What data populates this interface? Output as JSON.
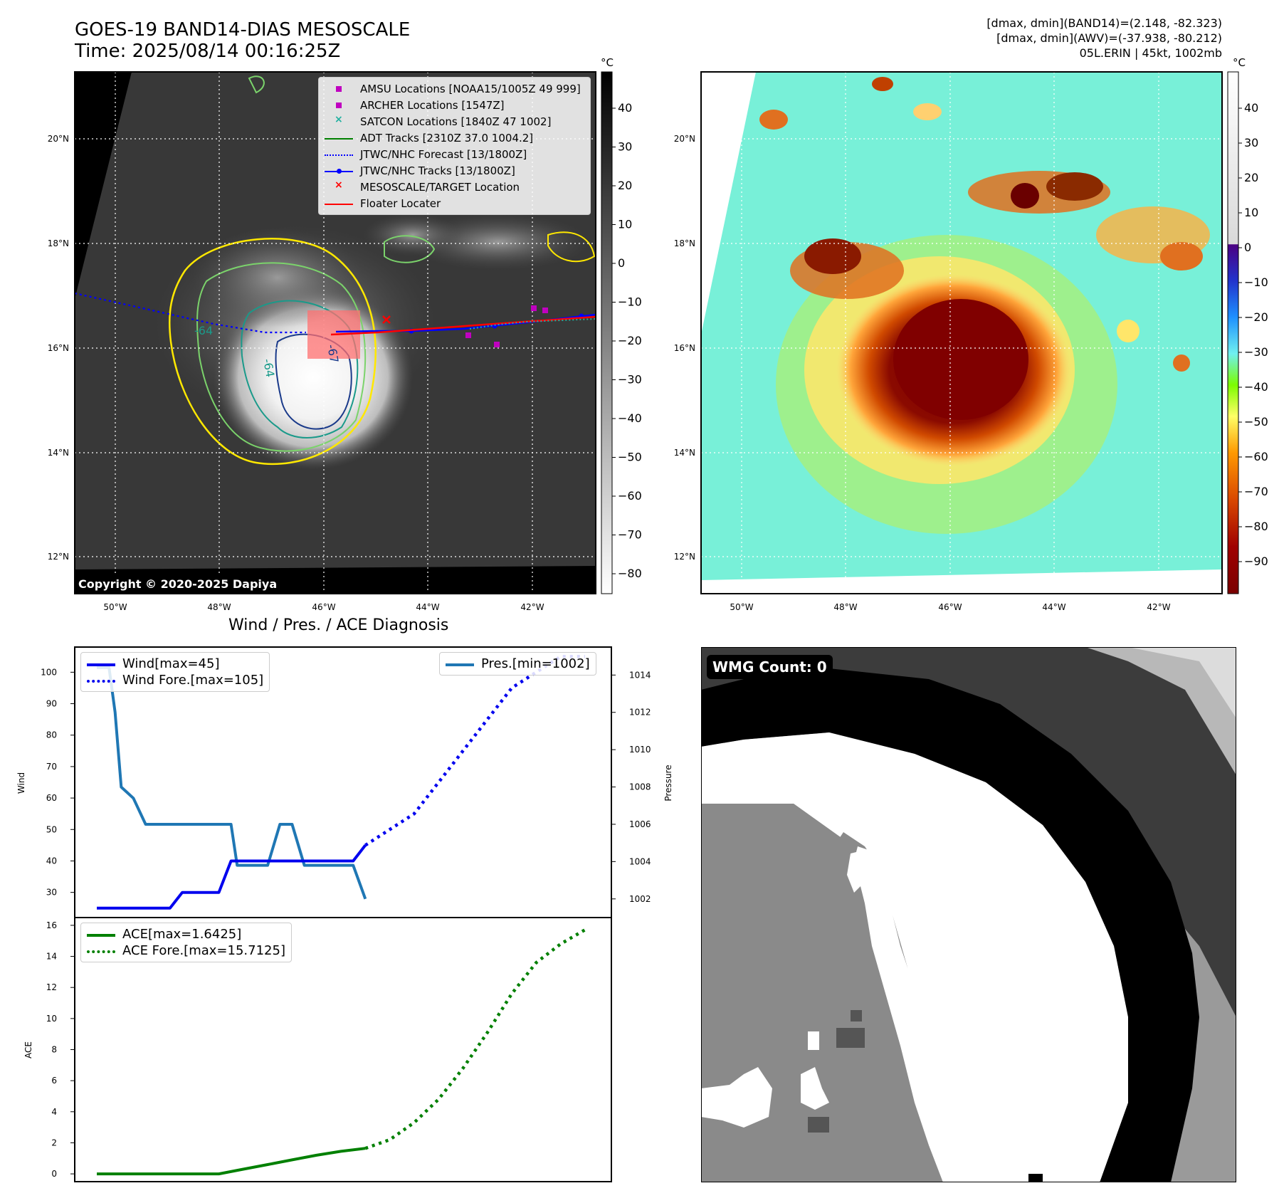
{
  "header": {
    "title_line1": "GOES-19 BAND14-DIAS MESOSCALE",
    "title_line2": "Time: 2025/08/14 00:16:25Z",
    "info_line1": "[dmax, dmin](BAND14)=(2.148, -82.323)",
    "info_line2": "[dmax, dmin](AWV)=(-37.938, -80.212)",
    "info_line3": "05L.ERIN | 45kt, 1002mb"
  },
  "map": {
    "lat_labels": [
      "20°N",
      "18°N",
      "16°N",
      "14°N",
      "12°N"
    ],
    "lon_labels": [
      "50°W",
      "48°W",
      "46°W",
      "44°W",
      "42°W"
    ],
    "copyright": "Copyright © 2020-2025 Dapiya",
    "contour_labels": [
      "-64",
      "-64",
      "-67"
    ],
    "legend": [
      {
        "label": "AMSU Locations [NOAA15/1005Z 49 999]",
        "color": "#c000c0",
        "marker": "square"
      },
      {
        "label": "ARCHER Locations [1547Z]",
        "color": "#c000c0",
        "marker": "square"
      },
      {
        "label": "SATCON Locations [1840Z 47 1002]",
        "color": "#20b0a0",
        "marker": "x"
      },
      {
        "label": "ADT Tracks [2310Z 37.0 1004.2]",
        "color": "#008000",
        "marker": "line"
      },
      {
        "label": "JTWC/NHC Forecast [13/1800Z]",
        "color": "#0000ff",
        "marker": "dotted"
      },
      {
        "label": "JTWC/NHC Tracks [13/1800Z]",
        "color": "#0000ff",
        "marker": "line-dot"
      },
      {
        "label": "MESOSCALE/TARGET Location",
        "color": "#ff0000",
        "marker": "x"
      },
      {
        "label": "Floater Locater",
        "color": "#ff0000",
        "marker": "line"
      }
    ]
  },
  "colorbar_gray": {
    "unit": "°C",
    "ticks": [
      "40",
      "30",
      "20",
      "10",
      "0",
      "−10",
      "−20",
      "−30",
      "−40",
      "−50",
      "−60",
      "−70",
      "−80"
    ]
  },
  "colorbar_color": {
    "unit": "°C",
    "ticks": [
      "40",
      "30",
      "20",
      "10",
      "0",
      "−10",
      "−20",
      "−30",
      "−40",
      "−50",
      "−60",
      "−70",
      "−80",
      "−90"
    ]
  },
  "diagnosis": {
    "title": "Wind / Pres. / ACE Diagnosis",
    "wind_ylabel": "Wind",
    "pres_ylabel": "Pressure",
    "ace_ylabel": "ACE",
    "wind_ticks": [
      "100",
      "90",
      "80",
      "70",
      "60",
      "50",
      "40",
      "30"
    ],
    "pres_ticks": [
      "1014",
      "1012",
      "1010",
      "1008",
      "1006",
      "1004",
      "1002"
    ],
    "ace_ticks": [
      "16",
      "14",
      "12",
      "10",
      "8",
      "6",
      "4",
      "2",
      "0"
    ],
    "legend_wind": "Wind[max=45]",
    "legend_wind_fore": "Wind Fore.[max=105]",
    "legend_pres": "Pres.[min=1002]",
    "legend_ace": "ACE[max=1.6425]",
    "legend_ace_fore": "ACE Fore.[max=15.7125]"
  },
  "wmg": {
    "label": "WMG Count: 0"
  },
  "colors": {
    "wind": "#0000ee",
    "pressure": "#1f77b4",
    "ace": "#008000",
    "floater": "#ff0000"
  },
  "chart_data": [
    {
      "type": "line",
      "title": "Wind / Pres. / ACE Diagnosis",
      "ylabel": "Wind",
      "ylim": [
        22,
        108
      ],
      "series": [
        {
          "name": "Wind[max=45]",
          "x": [
            0,
            1,
            2,
            3,
            4,
            5,
            6,
            7,
            8,
            9,
            10,
            11,
            12,
            13,
            14,
            15,
            16,
            17,
            18,
            19,
            20,
            21,
            22
          ],
          "values": [
            25,
            25,
            25,
            25,
            25,
            25,
            25,
            30,
            30,
            30,
            30,
            40,
            40,
            40,
            40,
            40,
            40,
            40,
            40,
            40,
            40,
            40,
            45
          ]
        },
        {
          "name": "Wind Fore.[max=105]",
          "x": [
            22,
            24,
            26,
            28,
            30,
            32,
            34,
            36,
            38,
            40
          ],
          "values": [
            45,
            50,
            55,
            65,
            75,
            85,
            95,
            100,
            105,
            105
          ]
        }
      ]
    },
    {
      "type": "line",
      "ylabel": "Pressure",
      "ylim": [
        1001,
        1015.5
      ],
      "series": [
        {
          "name": "Pres.[min=1002]",
          "x": [
            0,
            1,
            1.5,
            2,
            3,
            4,
            5,
            6,
            7,
            8,
            9,
            10,
            11,
            11.5,
            12,
            13,
            14,
            15,
            16,
            17,
            18,
            19,
            20,
            21,
            22
          ],
          "values": [
            1014.4,
            1014.4,
            1012,
            1008,
            1007.4,
            1006,
            1006,
            1006,
            1006,
            1006,
            1006,
            1006,
            1006,
            1003.8,
            1003.8,
            1003.8,
            1003.8,
            1006,
            1006,
            1003.8,
            1003.8,
            1003.8,
            1003.8,
            1003.8,
            1002
          ]
        }
      ]
    },
    {
      "type": "line",
      "ylabel": "ACE",
      "ylim": [
        -0.5,
        16.5
      ],
      "series": [
        {
          "name": "ACE[max=1.6425]",
          "x": [
            0,
            2,
            4,
            6,
            8,
            10,
            12,
            14,
            16,
            18,
            20,
            22
          ],
          "values": [
            0,
            0,
            0,
            0,
            0,
            0,
            0.3,
            0.6,
            0.9,
            1.2,
            1.45,
            1.6425
          ]
        },
        {
          "name": "ACE Fore.[max=15.7125]",
          "x": [
            22,
            24,
            26,
            28,
            30,
            32,
            34,
            36,
            38,
            40
          ],
          "values": [
            1.6425,
            2.2,
            3.3,
            4.8,
            6.8,
            9.1,
            11.6,
            13.6,
            14.8,
            15.7125
          ]
        }
      ]
    }
  ]
}
